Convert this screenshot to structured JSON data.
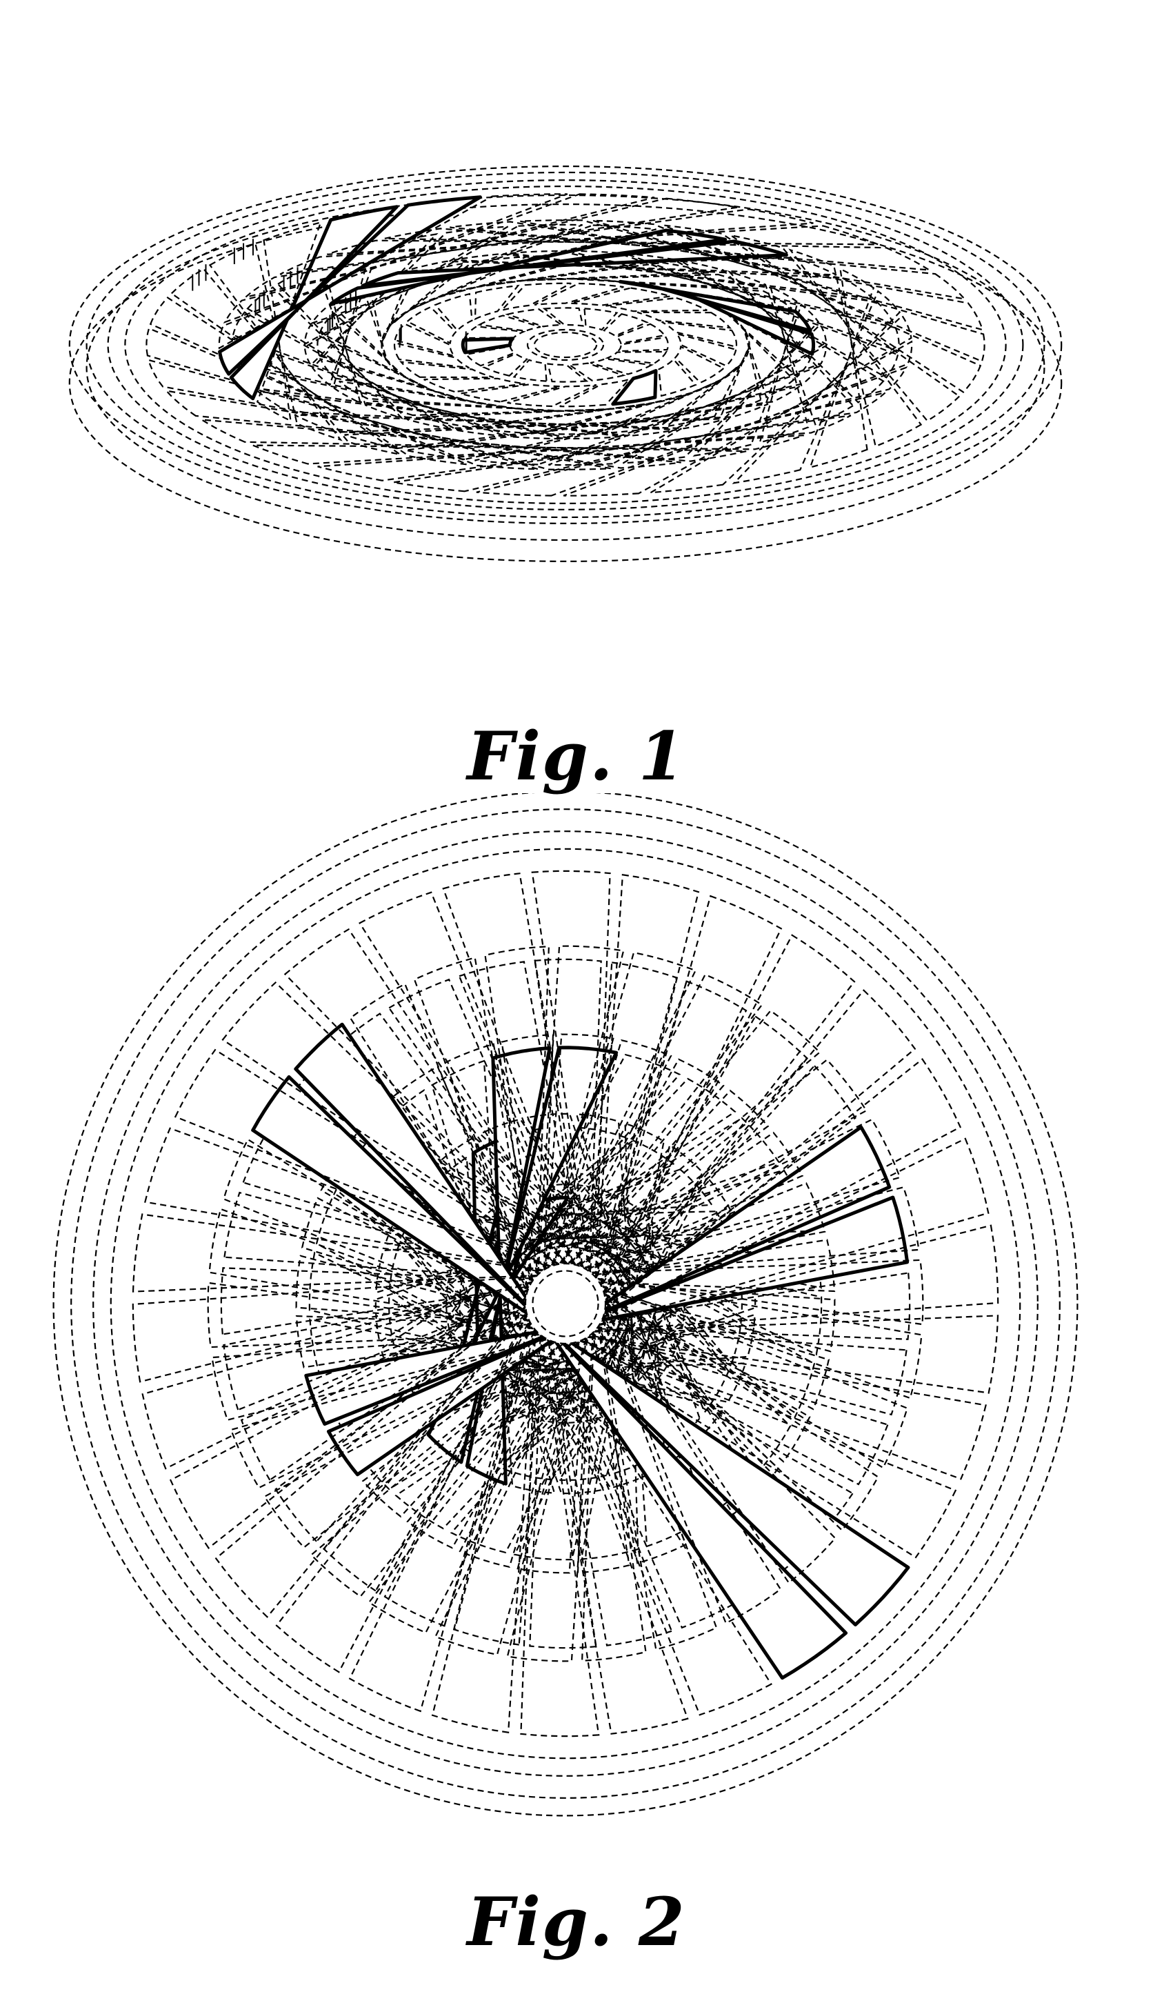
{
  "figures": [
    {
      "caption": "Fig. 1",
      "view": "perspective"
    },
    {
      "caption": "Fig. 2",
      "view": "top"
    }
  ]
}
